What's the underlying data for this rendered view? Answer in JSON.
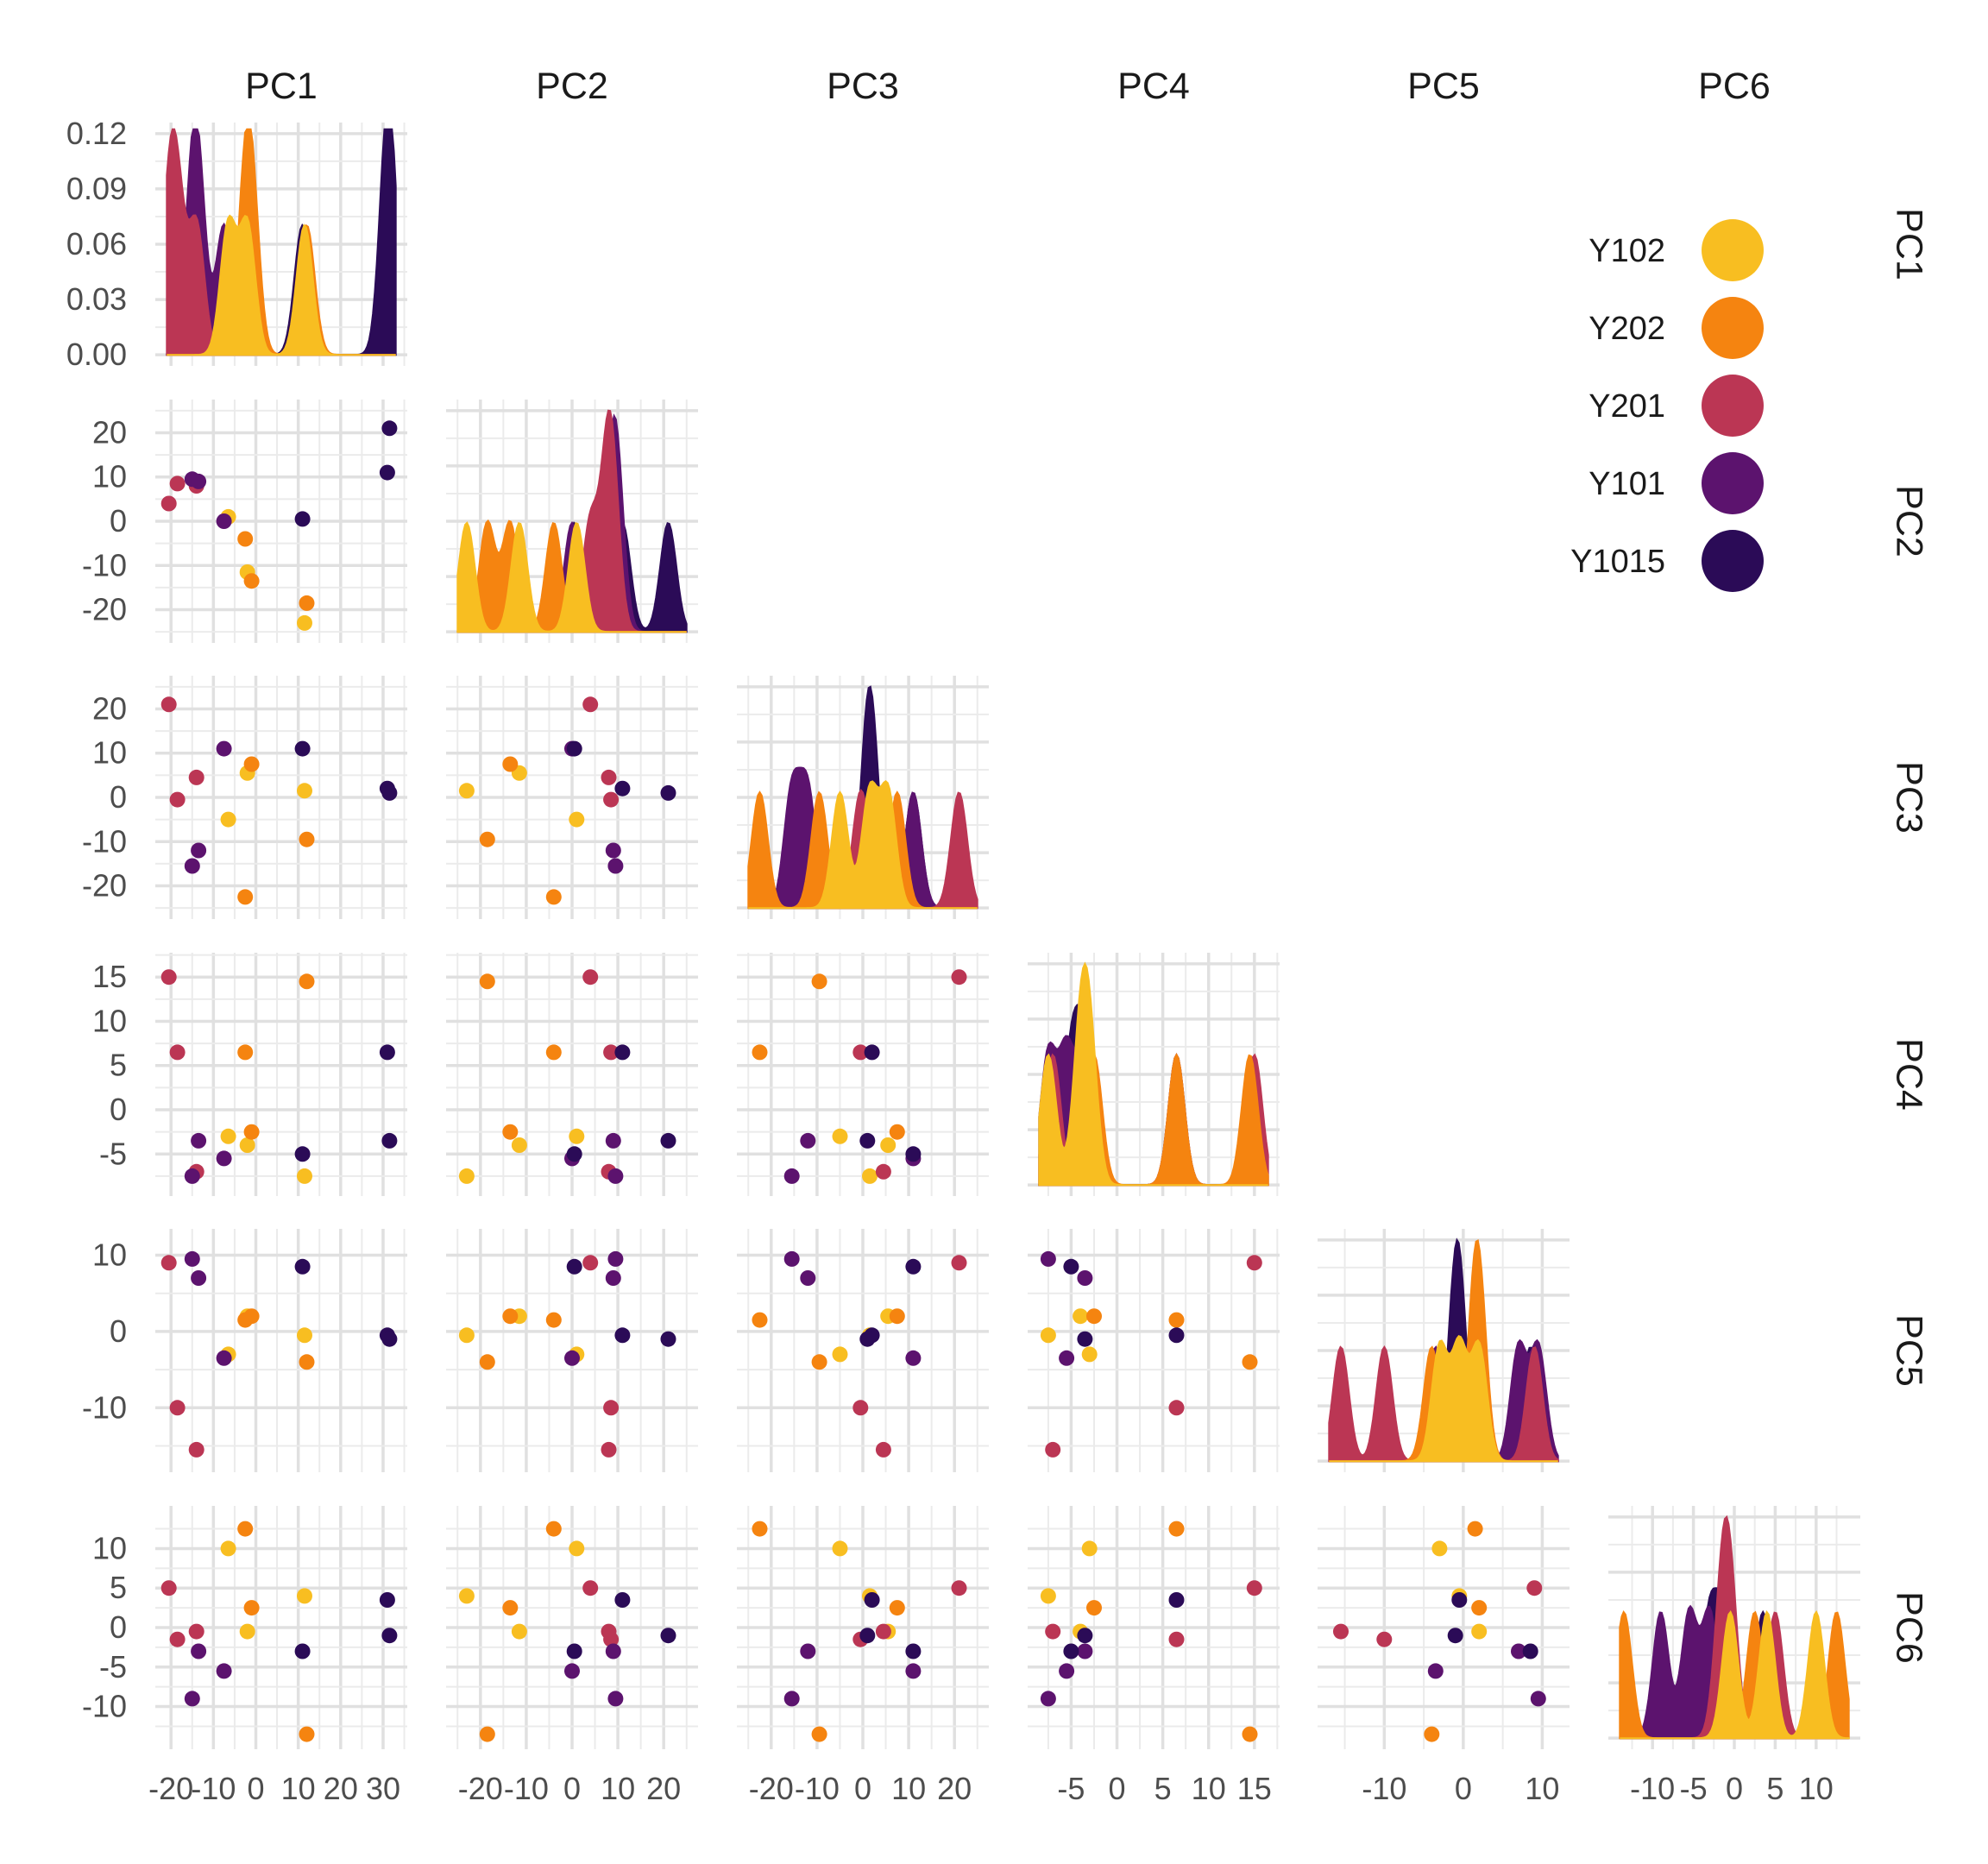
{
  "chart_data": {
    "type": "scatter",
    "title": "",
    "variables": [
      "PC1",
      "PC2",
      "PC3",
      "PC4",
      "PC5",
      "PC6"
    ],
    "groups": [
      {
        "name": "Y102",
        "color": "#F8BE21"
      },
      {
        "name": "Y202",
        "color": "#F58410"
      },
      {
        "name": "Y201",
        "color": "#BB3654"
      },
      {
        "name": "Y101",
        "color": "#5C136E"
      },
      {
        "name": "Y1015",
        "color": "#2B0B57"
      }
    ],
    "axes": {
      "PC1": {
        "range": [
          -21,
          33
        ],
        "ticks": [
          -20,
          -10,
          0,
          10,
          20,
          30
        ],
        "labels": [
          "-20",
          "-10",
          "0",
          "10",
          "20",
          "30"
        ]
      },
      "PC2": {
        "range": [
          -25,
          25
        ],
        "ticks": [
          -20,
          -10,
          0,
          10,
          20
        ],
        "labels": [
          "-20",
          "-10",
          "0",
          "10",
          "20"
        ]
      },
      "PC3": {
        "range": [
          -25,
          25
        ],
        "ticks": [
          -20,
          -10,
          0,
          10,
          20
        ],
        "labels": [
          "-20",
          "-10",
          "0",
          "10",
          "20"
        ]
      },
      "PC4": {
        "range": [
          -8.5,
          16.5
        ],
        "ticks": [
          -5,
          0,
          5,
          10,
          15
        ],
        "labels": [
          "-5",
          "0",
          "5",
          "10",
          "15"
        ]
      },
      "PC5": {
        "range": [
          -17,
          12
        ],
        "ticks": [
          -10,
          0,
          10
        ],
        "labels": [
          "-10",
          "0",
          "10"
        ]
      },
      "PC6": {
        "range": [
          -14,
          14
        ],
        "ticks": [
          -10,
          -5,
          0,
          5,
          10
        ],
        "labels": [
          "-10",
          "-5",
          "0",
          "5",
          "10"
        ]
      }
    },
    "density_axis": {
      "range": [
        0,
        0.12
      ],
      "ticks": [
        0,
        0.03,
        0.06,
        0.09,
        0.12
      ],
      "labels": [
        "0.00",
        "0.03",
        "0.06",
        "0.09",
        "0.12"
      ]
    },
    "points": [
      {
        "group": "Y102",
        "PC1": -6.5,
        "PC2": 1,
        "PC3": -5,
        "PC4": -3,
        "PC5": -3,
        "PC6": 10
      },
      {
        "group": "Y102",
        "PC1": -2,
        "PC2": -11.5,
        "PC3": 5.5,
        "PC4": -4,
        "PC5": 2,
        "PC6": -0.5
      },
      {
        "group": "Y102",
        "PC1": 11.5,
        "PC2": -23,
        "PC3": 1.5,
        "PC4": -7.5,
        "PC5": -0.5,
        "PC6": 4
      },
      {
        "group": "Y202",
        "PC1": -2.5,
        "PC2": -4,
        "PC3": -22.5,
        "PC4": 6.5,
        "PC5": 1.5,
        "PC6": 12.5
      },
      {
        "group": "Y202",
        "PC1": -1,
        "PC2": -13.5,
        "PC3": 7.5,
        "PC4": -2.5,
        "PC5": 2,
        "PC6": 2.5
      },
      {
        "group": "Y202",
        "PC1": 12,
        "PC2": -18.5,
        "PC3": -9.5,
        "PC4": 14.5,
        "PC5": -4,
        "PC6": -13.5
      },
      {
        "group": "Y201",
        "PC1": -20.5,
        "PC2": 4,
        "PC3": 21,
        "PC4": 15,
        "PC5": 9,
        "PC6": 5
      },
      {
        "group": "Y201",
        "PC1": -18.5,
        "PC2": 8.5,
        "PC3": -0.5,
        "PC4": 6.5,
        "PC5": -10,
        "PC6": -1.5
      },
      {
        "group": "Y201",
        "PC1": -14,
        "PC2": 8,
        "PC3": 4.5,
        "PC4": -7,
        "PC5": -15.5,
        "PC6": -0.5
      },
      {
        "group": "Y101",
        "PC1": -15,
        "PC2": 9.5,
        "PC3": -15.5,
        "PC4": -7.5,
        "PC5": 9.5,
        "PC6": -9
      },
      {
        "group": "Y101",
        "PC1": -13.5,
        "PC2": 9,
        "PC3": -12,
        "PC4": -3.5,
        "PC5": 7,
        "PC6": -3
      },
      {
        "group": "Y101",
        "PC1": -7.5,
        "PC2": 0,
        "PC3": 11,
        "PC4": -5.5,
        "PC5": -3.5,
        "PC6": -5.5
      },
      {
        "group": "Y1015",
        "PC1": 11,
        "PC2": 0.5,
        "PC3": 11,
        "PC4": -5,
        "PC5": 8.5,
        "PC6": -3
      },
      {
        "group": "Y1015",
        "PC1": 31,
        "PC2": 11,
        "PC3": 2,
        "PC4": 6.5,
        "PC5": -0.5,
        "PC6": 3.5
      },
      {
        "group": "Y1015",
        "PC1": 31.5,
        "PC2": 21,
        "PC3": 1,
        "PC4": -3.5,
        "PC5": -1,
        "PC6": -1
      }
    ],
    "grid": true,
    "legend_position": "top-right"
  }
}
